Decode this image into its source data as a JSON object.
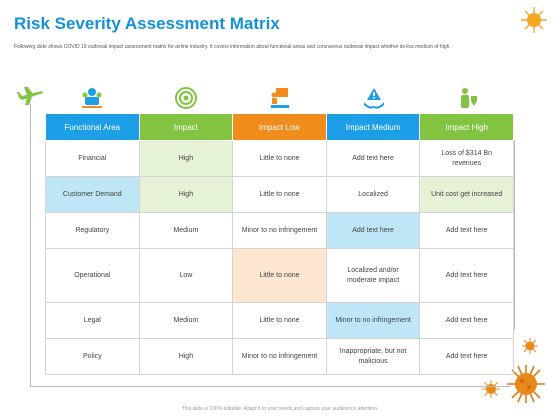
{
  "title": "Risk Severity Assessment Matrix",
  "subtitle": "Following slide shows COVID 19 outbreak impact assessment matrix for airline industry. It covers information about functional areas and coronavirus outbreak impact whether its low medium of high.",
  "headers": [
    "Functional Area",
    "Impact",
    "Impact Low",
    "Impact Medium",
    "Impact High"
  ],
  "icons": [
    "team-gear-icon",
    "target-icon",
    "presentation-icon",
    "warning-hand-icon",
    "person-shield-icon"
  ],
  "rows": [
    [
      "Financial",
      "High",
      "Little to none",
      "Add text here",
      "Loss of $314 Bn revenues"
    ],
    [
      "Customer Demand",
      "High",
      "Little to none",
      "Localized",
      "Unit cost get increased"
    ],
    [
      "Regulatory",
      "Medium",
      "Minor to no infringement",
      "Add text here",
      "Add text here"
    ],
    [
      "Operational",
      "Low",
      "Little to none",
      "Localized and/or moderate impact",
      "Add text here"
    ],
    [
      "Legal",
      "Medium",
      "Little to none",
      "Minor to no infringement",
      "Add text here"
    ],
    [
      "Policy",
      "High",
      "Minor to no infringement",
      "Inappropriate,  but not malicious",
      "Add text here"
    ]
  ],
  "footer": "This slide is 100% editable. Adapt it to your needs and capture your audience's attention.",
  "colors": {
    "title": "#1592d6",
    "blue": "#1c9fe6",
    "green": "#82c341",
    "orange": "#f08c1c",
    "virus": "#f5a623"
  }
}
